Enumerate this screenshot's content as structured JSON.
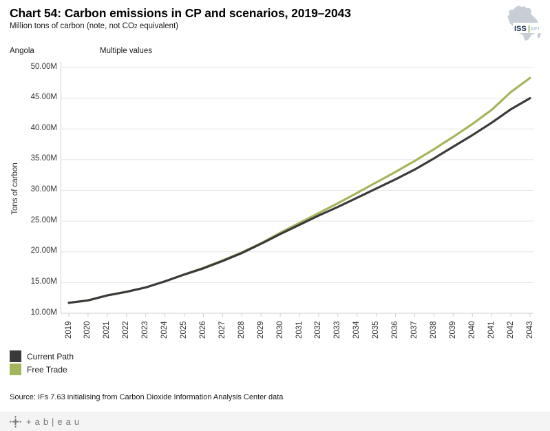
{
  "header": {
    "title": "Chart 54: Carbon emissions in CP and scenarios, 2019–2043",
    "subtitle_pre": "Million tons of carbon (note, not CO",
    "subtitle_sub": "2",
    "subtitle_post": " equivalent)"
  },
  "filters": {
    "country": "Angola",
    "scenario": "Multiple values"
  },
  "logo": {
    "iss": "ISS",
    "divider": "|",
    "afi": "AFI",
    "africa_fill": "#c7ced5",
    "iss_color": "#16324f",
    "divider_color": "#70a83b",
    "afi_color": "#8fa8c8"
  },
  "chart_data": {
    "type": "line",
    "title": "Chart 54: Carbon emissions in CP and scenarios, 2019–2043",
    "xlabel": "",
    "ylabel": "Tons of carbon",
    "ylim": [
      10,
      50
    ],
    "ytick_values": [
      10,
      15,
      20,
      25,
      30,
      35,
      40,
      45,
      50
    ],
    "ytick_labels": [
      "10.00M",
      "15.00M",
      "20.00M",
      "25.00M",
      "30.00M",
      "35.00M",
      "40.00M",
      "45.00M",
      "50.00M"
    ],
    "categories": [
      "2019",
      "2020",
      "2021",
      "2022",
      "2023",
      "2024",
      "2025",
      "2026",
      "2027",
      "2028",
      "2029",
      "2030",
      "2031",
      "2032",
      "2033",
      "2034",
      "2035",
      "2036",
      "2037",
      "2038",
      "2039",
      "2040",
      "2041",
      "2042",
      "2043"
    ],
    "series": [
      {
        "name": "Current Path",
        "color": "#3a3a3a",
        "values": [
          11.7,
          12.1,
          12.9,
          13.5,
          14.2,
          15.2,
          16.3,
          17.3,
          18.5,
          19.8,
          21.3,
          22.9,
          24.4,
          25.9,
          27.3,
          28.8,
          30.3,
          31.8,
          33.4,
          35.2,
          37.1,
          39.0,
          41.0,
          43.2,
          45.0
        ]
      },
      {
        "name": "Free Trade",
        "color": "#a4b65c",
        "values": [
          11.7,
          12.1,
          12.9,
          13.5,
          14.2,
          15.2,
          16.3,
          17.4,
          18.6,
          19.9,
          21.4,
          23.1,
          24.7,
          26.3,
          27.9,
          29.6,
          31.3,
          33.0,
          34.8,
          36.7,
          38.7,
          40.8,
          43.1,
          46.0,
          48.3
        ]
      }
    ],
    "grid": true,
    "grid_color": "#e4e4e4",
    "axis_color": "#cfcfcf",
    "legend_position": "bottom-left"
  },
  "source": "Source: IFs 7.63 initialising from Carbon Dioxide Information Analysis Center data",
  "footer": {
    "brand": "+ab|eau"
  }
}
